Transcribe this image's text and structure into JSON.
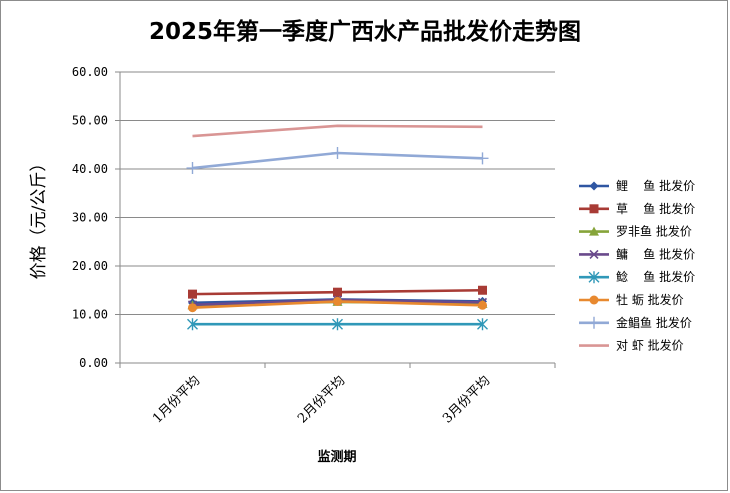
{
  "chart_data": {
    "type": "line",
    "title": "2025年第一季度广西水产品批发价走势图",
    "xlabel": "监测期",
    "ylabel": "价格（元/公斤）",
    "categories": [
      "1月份平均",
      "2月份平均",
      "3月份平均"
    ],
    "ylim": [
      0,
      60
    ],
    "yticks": [
      "0.00",
      "10.00",
      "20.00",
      "30.00",
      "40.00",
      "50.00",
      "60.00"
    ],
    "grid": true,
    "legend_position": "right",
    "series": [
      {
        "name": "鲤    鱼 批发价",
        "values": [
          12.4,
          13.1,
          12.7
        ],
        "color": "#2f56a2",
        "marker": "diamond"
      },
      {
        "name": "草    鱼 批发价",
        "values": [
          14.2,
          14.6,
          15.0
        ],
        "color": "#a83b35",
        "marker": "square"
      },
      {
        "name": "罗非鱼 批发价",
        "values": [
          11.9,
          12.6,
          12.2
        ],
        "color": "#86a43a",
        "marker": "triangle"
      },
      {
        "name": "鳙    鱼 批发价",
        "values": [
          12.0,
          13.0,
          12.5
        ],
        "color": "#6a4a8c",
        "marker": "x"
      },
      {
        "name": "鲶    鱼 批发价",
        "values": [
          8.0,
          8.0,
          8.0
        ],
        "color": "#3098b8",
        "marker": "star"
      },
      {
        "name": "牡 蛎 批发价",
        "values": [
          11.4,
          12.7,
          11.9
        ],
        "color": "#e8892f",
        "marker": "circle"
      },
      {
        "name": "金鲳鱼 批发价",
        "values": [
          40.2,
          43.3,
          42.2
        ],
        "color": "#91a9d6",
        "marker": "plus"
      },
      {
        "name": "对 虾 批发价",
        "values": [
          46.8,
          48.9,
          48.7
        ],
        "color": "#d99594",
        "marker": "none"
      }
    ]
  }
}
